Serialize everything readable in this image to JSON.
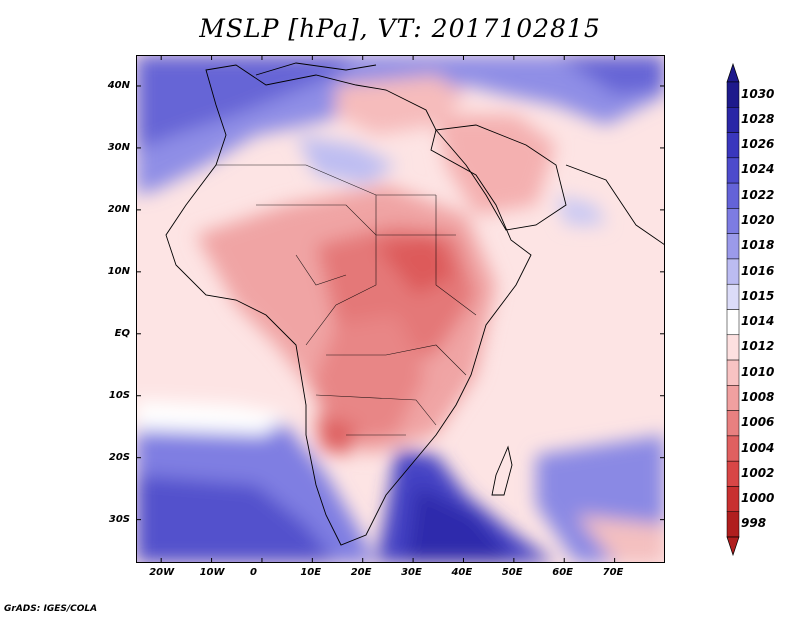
{
  "title": "MSLP [hPa], VT: 2017102815",
  "credit": "GrADS: IGES/COLA",
  "map": {
    "lon_range": [
      -25,
      80
    ],
    "lat_range": [
      -37,
      45
    ],
    "lon_ticks": [
      {
        "value": -20,
        "label": "20W"
      },
      {
        "value": -10,
        "label": "10W"
      },
      {
        "value": 0,
        "label": "0"
      },
      {
        "value": 10,
        "label": "10E"
      },
      {
        "value": 20,
        "label": "20E"
      },
      {
        "value": 30,
        "label": "30E"
      },
      {
        "value": 40,
        "label": "40E"
      },
      {
        "value": 50,
        "label": "50E"
      },
      {
        "value": 60,
        "label": "60E"
      },
      {
        "value": 70,
        "label": "70E"
      }
    ],
    "lat_ticks": [
      {
        "value": 40,
        "label": "40N"
      },
      {
        "value": 30,
        "label": "30N"
      },
      {
        "value": 20,
        "label": "20N"
      },
      {
        "value": 10,
        "label": "10N"
      },
      {
        "value": 0,
        "label": "EQ"
      },
      {
        "value": -10,
        "label": "10S"
      },
      {
        "value": -20,
        "label": "20S"
      },
      {
        "value": -30,
        "label": "30S"
      }
    ]
  },
  "colorbar": {
    "levels": [
      {
        "label": "1030",
        "color": "#1e1a8c"
      },
      {
        "label": "1028",
        "color": "#2a26a6"
      },
      {
        "label": "1026",
        "color": "#3a37bd"
      },
      {
        "label": "1024",
        "color": "#4d4bcc"
      },
      {
        "label": "1022",
        "color": "#6463d8"
      },
      {
        "label": "1020",
        "color": "#7d7ce2"
      },
      {
        "label": "1018",
        "color": "#9b9aea"
      },
      {
        "label": "1016",
        "color": "#bcbcf2"
      },
      {
        "label": "1015",
        "color": "#dcdcf8"
      },
      {
        "label": "1014",
        "color": "#ffffff"
      },
      {
        "label": "1012",
        "color": "#fde0e0"
      },
      {
        "label": "1010",
        "color": "#f8c3c3"
      },
      {
        "label": "1008",
        "color": "#f0a0a0"
      },
      {
        "label": "1006",
        "color": "#e88080"
      },
      {
        "label": "1004",
        "color": "#e06060"
      },
      {
        "label": "1002",
        "color": "#d84646"
      },
      {
        "label": "1000",
        "color": "#c83030"
      },
      {
        "label": "998",
        "color": "#b01e1e"
      }
    ]
  }
}
